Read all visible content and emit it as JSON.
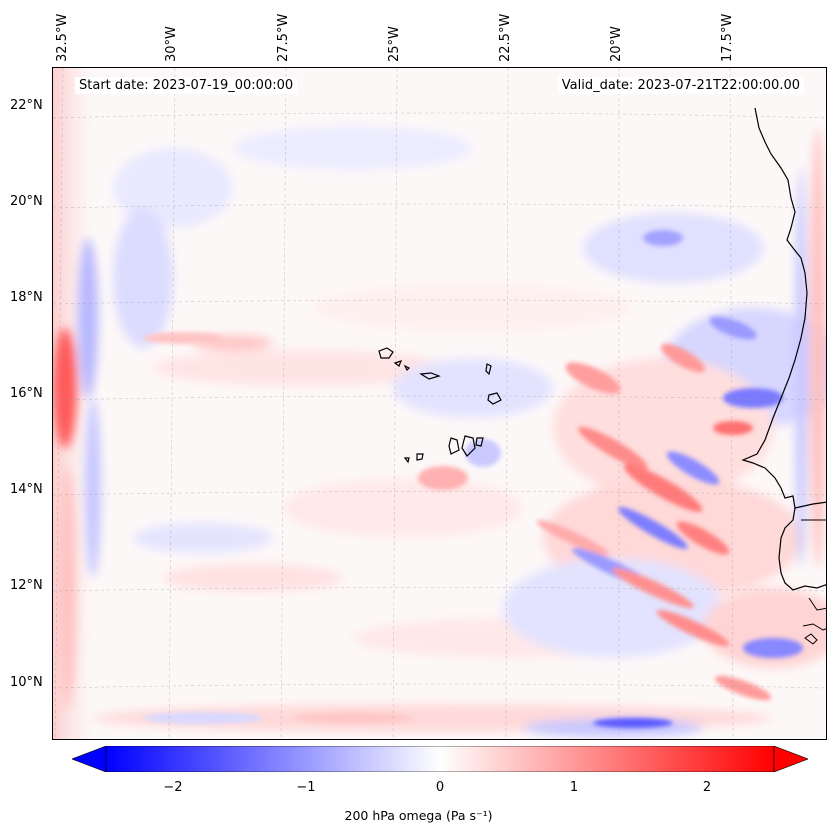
{
  "map": {
    "start_date": "Start date: 2023-07-19_00:00:00",
    "valid_date": "Valid_date: 2023-07-21T22:00:00.00",
    "lon_labels": [
      "32.5°W",
      "30°W",
      "27.5°W",
      "25°W",
      "22.5°W",
      "20°W",
      "17.5°W"
    ],
    "lat_labels": [
      "22°N",
      "20°N",
      "18°N",
      "16°N",
      "14°N",
      "12°N",
      "10°N"
    ],
    "extent": {
      "lon_min": -32.8,
      "lon_max": -15.6,
      "lat_min": 8.9,
      "lat_max": 22.7
    },
    "field": "200 hPa omega",
    "features": [
      "coastline-africa",
      "cape-verde-islands",
      "gridlines-dashed"
    ]
  },
  "colorbar": {
    "ticks": [
      "−2",
      "−1",
      "0",
      "1",
      "2"
    ],
    "tick_values": [
      -2,
      -1,
      0,
      1,
      2
    ],
    "range": [
      -2.5,
      2.5
    ],
    "label": "200 hPa omega (Pa s⁻¹)",
    "colormap": "bwr",
    "extend": "both",
    "colors": {
      "min": "#0000ff",
      "mid": "#ffffff",
      "max": "#ff0000"
    }
  }
}
